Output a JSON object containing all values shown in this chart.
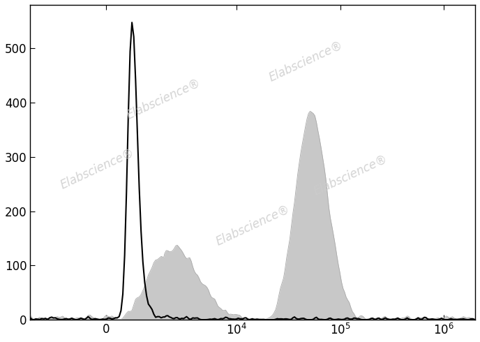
{
  "title": "",
  "ylabel": "",
  "xlabel": "",
  "ylim": [
    0,
    580
  ],
  "yticks": [
    0,
    100,
    200,
    300,
    400,
    500
  ],
  "watermark": "Elabscience",
  "background_color": "#ffffff",
  "gray_fill_color": "#c8c8c8",
  "gray_edge_color": "#aaaaaa",
  "black_line_color": "#000000",
  "linthresh": 2000,
  "linscale": 0.5
}
